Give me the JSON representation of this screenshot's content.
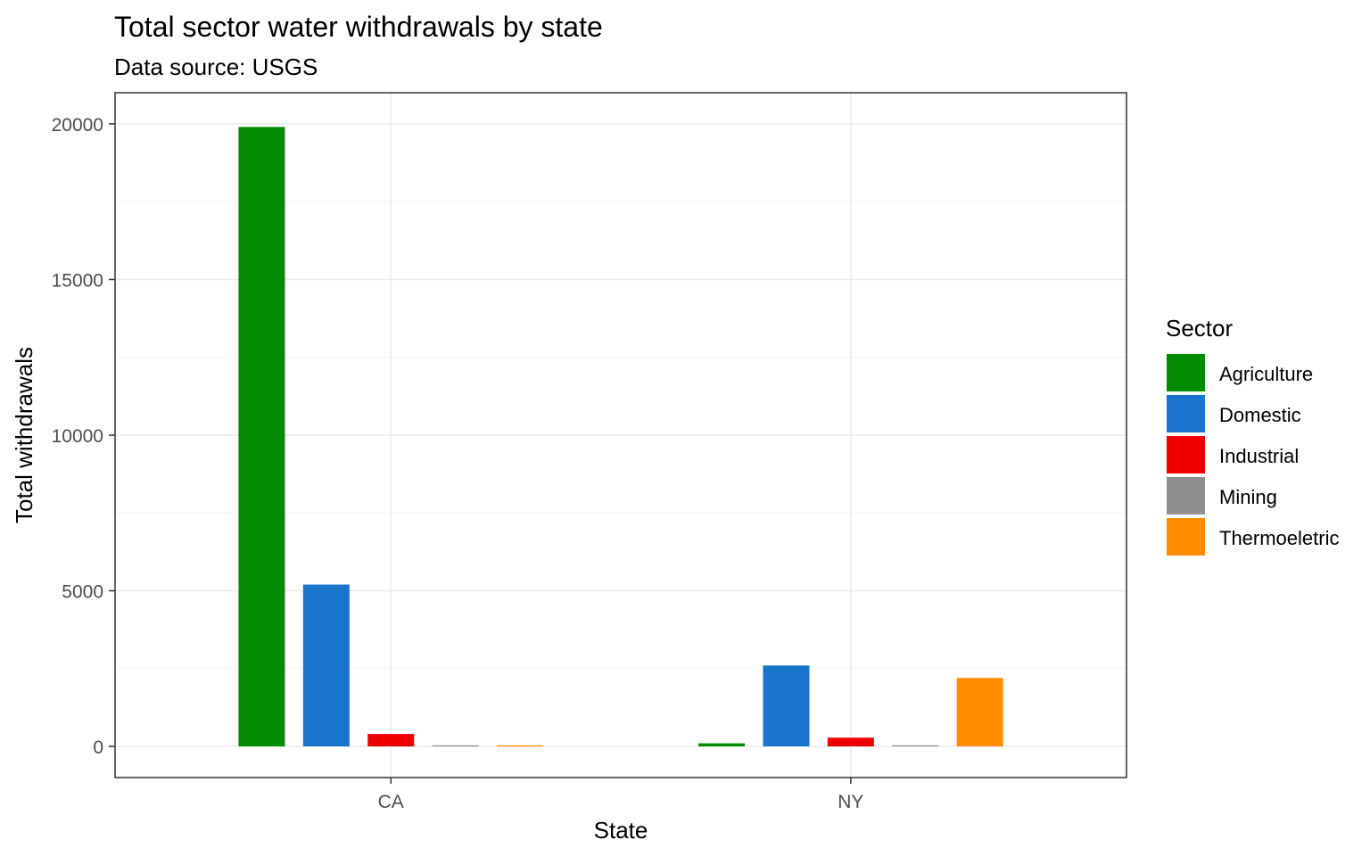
{
  "chart_data": {
    "type": "bar",
    "title": "Total sector water withdrawals by state",
    "subtitle": "Data source: USGS",
    "xlabel": "State",
    "ylabel": "Total withdrawals",
    "categories": [
      "CA",
      "NY"
    ],
    "ylim": [
      -1000,
      21000
    ],
    "yticks": [
      0,
      5000,
      10000,
      15000,
      20000
    ],
    "grid": true,
    "legend_title": "Sector",
    "legend_position": "right",
    "series": [
      {
        "name": "Agriculture",
        "color": "#008B00",
        "values": [
          19900,
          100
        ]
      },
      {
        "name": "Domestic",
        "color": "#1874CD",
        "values": [
          5200,
          2600
        ]
      },
      {
        "name": "Industrial",
        "color": "#EE0000",
        "values": [
          400,
          280
        ]
      },
      {
        "name": "Mining",
        "color": "#8F8F8F",
        "values": [
          20,
          20
        ]
      },
      {
        "name": "Thermoeletric",
        "color": "#FF8C00",
        "values": [
          30,
          2200
        ]
      }
    ]
  }
}
